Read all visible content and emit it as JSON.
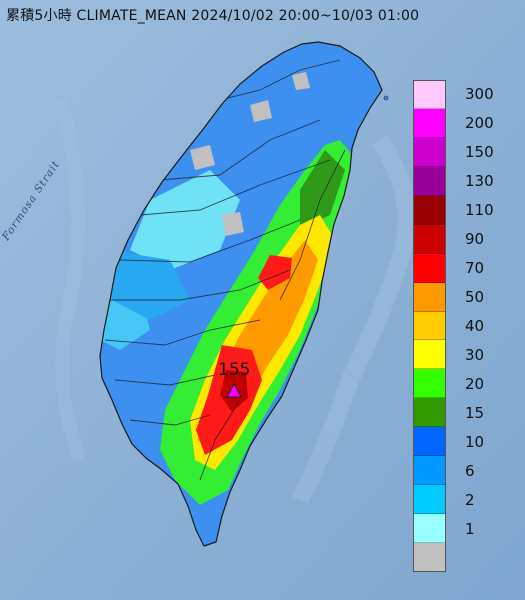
{
  "title": "累積5小時 CLIMATE_MEAN 2024/10/02 20:00~10/03 01:00",
  "strait_label": "Formosa Strait",
  "peak": {
    "value": "155"
  },
  "legend": [
    {
      "label": "300",
      "color": "#ffc8ff"
    },
    {
      "label": "200",
      "color": "#ff00ff"
    },
    {
      "label": "150",
      "color": "#cc00cc"
    },
    {
      "label": "130",
      "color": "#990099"
    },
    {
      "label": "110",
      "color": "#990000"
    },
    {
      "label": "90",
      "color": "#cc0000"
    },
    {
      "label": "70",
      "color": "#ff0000"
    },
    {
      "label": "50",
      "color": "#ff9900"
    },
    {
      "label": "40",
      "color": "#ffcc00"
    },
    {
      "label": "30",
      "color": "#ffff00"
    },
    {
      "label": "20",
      "color": "#33ff00"
    },
    {
      "label": "15",
      "color": "#339900"
    },
    {
      "label": "10",
      "color": "#0066ff"
    },
    {
      "label": "6",
      "color": "#0099ff"
    },
    {
      "label": "2",
      "color": "#00ccff"
    },
    {
      "label": "1",
      "color": "#99ffff"
    },
    {
      "label": "",
      "color": "#c0c0c0"
    }
  ]
}
